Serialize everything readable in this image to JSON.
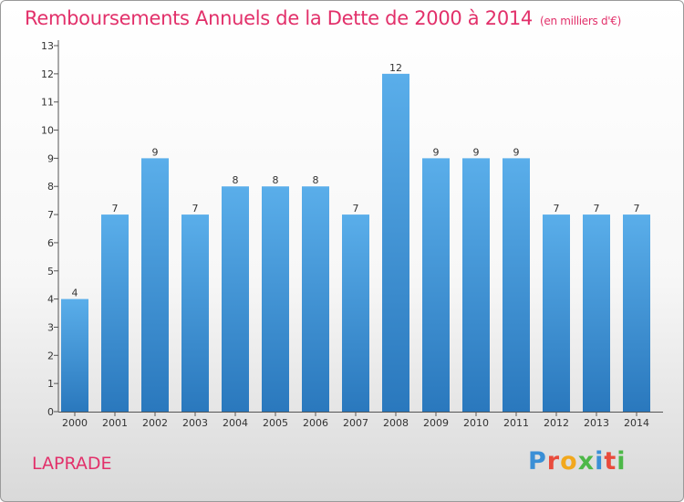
{
  "title": {
    "main": "Remboursements Annuels de la Dette de 2000 à 2014",
    "unit": "(en milliers d'€)"
  },
  "footer": {
    "commune": "LAPRADE",
    "brand_letters": [
      "P",
      "r",
      "o",
      "x",
      "i",
      "t",
      "i"
    ]
  },
  "colors": {
    "title": "#e2306a",
    "bar_top": "#5aaeea",
    "bar_bottom": "#2a78bd",
    "brand": [
      "#3a8fd6",
      "#e94b3c",
      "#f2a81d",
      "#4db848",
      "#3a8fd6",
      "#e94b3c",
      "#4db848"
    ]
  },
  "chart_data": {
    "type": "bar",
    "categories": [
      "2000",
      "2001",
      "2002",
      "2003",
      "2004",
      "2005",
      "2006",
      "2007",
      "2008",
      "2009",
      "2010",
      "2011",
      "2012",
      "2013",
      "2014"
    ],
    "values": [
      4,
      7,
      9,
      7,
      8,
      8,
      8,
      7,
      12,
      9,
      9,
      9,
      7,
      7,
      7
    ],
    "data_labels": [
      "4",
      "7",
      "9",
      "7",
      "8",
      "8",
      "8",
      "7",
      "12",
      "9",
      "9",
      "9",
      "7",
      "7",
      "7"
    ],
    "yticks": [
      0,
      1,
      2,
      3,
      4,
      5,
      6,
      7,
      8,
      9,
      10,
      11,
      12,
      13
    ],
    "ylim": [
      0,
      13
    ],
    "grid": false
  }
}
